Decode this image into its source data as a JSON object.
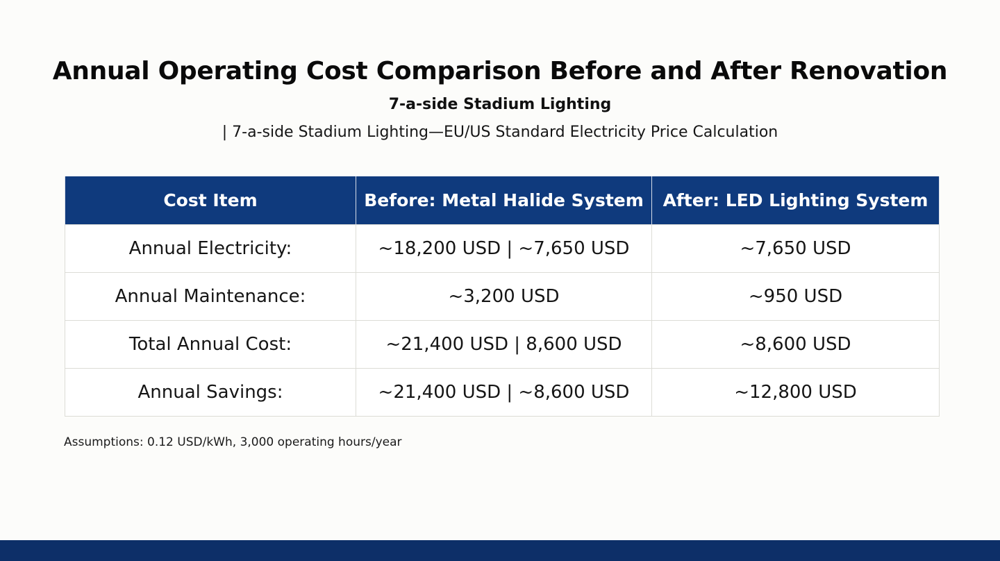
{
  "header": {
    "title": "Annual Operating Cost Comparison Before and After Renovation",
    "subtitle": "7-a-side Stadium Lighting",
    "tagline": "| 7-a-side Stadium Lighting—EU/US Standard Electricity Price Calculation"
  },
  "table": {
    "columns": [
      "Cost Item",
      "Before: Metal Halide System",
      "After: LED Lighting System"
    ],
    "rows": [
      [
        "Annual Electricity:",
        "~18,200 USD | ~7,650 USD",
        "~7,650 USD"
      ],
      [
        "Annual Maintenance:",
        "~3,200 USD",
        "~950 USD"
      ],
      [
        "Total Annual Cost:",
        "~21,400 USD | 8,600 USD",
        "~8,600 USD"
      ],
      [
        "Annual Savings:",
        "~21,400 USD | ~8,600 USD",
        "~12,800 USD"
      ]
    ]
  },
  "footer": {
    "note": "Assumptions: 0.12 USD/kWh, 3,000 operating hours/year"
  },
  "colors": {
    "header_bg": "#0f3a7d",
    "footer_band": "#0d2f68"
  }
}
